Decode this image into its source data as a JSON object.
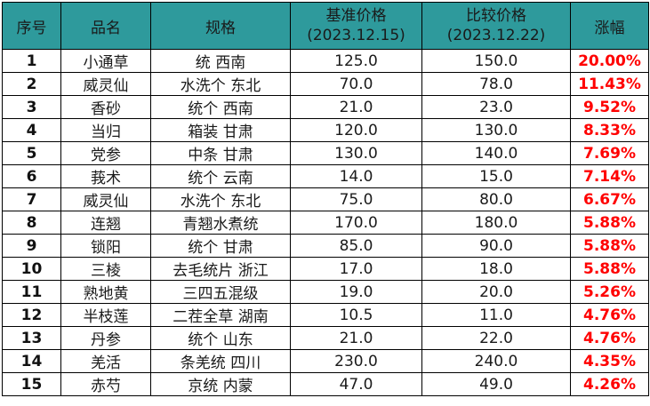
{
  "headers": {
    "index": "序号",
    "name": "品名",
    "spec": "规格",
    "base_line1": "基准价格",
    "base_line2": "(2023.12.15)",
    "comp_line1": "比较价格",
    "comp_line2": "(2023.12.22)",
    "rise": "涨幅"
  },
  "colors": {
    "header_bg": "#2e9a9c",
    "rise_text": "#ff0000"
  },
  "rows": [
    {
      "index": "1",
      "name": "小通草",
      "spec": "统 西南",
      "base": "125.0",
      "comp": "150.0",
      "rise": "20.00%"
    },
    {
      "index": "2",
      "name": "威灵仙",
      "spec": "水洗个 东北",
      "base": "70.0",
      "comp": "78.0",
      "rise": "11.43%"
    },
    {
      "index": "3",
      "name": "香砂",
      "spec": "统个 西南",
      "base": "21.0",
      "comp": "23.0",
      "rise": "9.52%"
    },
    {
      "index": "4",
      "name": "当归",
      "spec": "箱装 甘肃",
      "base": "120.0",
      "comp": "130.0",
      "rise": "8.33%"
    },
    {
      "index": "5",
      "name": "党参",
      "spec": "中条 甘肃",
      "base": "130.0",
      "comp": "140.0",
      "rise": "7.69%"
    },
    {
      "index": "6",
      "name": "莪术",
      "spec": "统个 云南",
      "base": "14.0",
      "comp": "15.0",
      "rise": "7.14%"
    },
    {
      "index": "7",
      "name": "威灵仙",
      "spec": "水洗个 东北",
      "base": "75.0",
      "comp": "80.0",
      "rise": "6.67%"
    },
    {
      "index": "8",
      "name": "连翘",
      "spec": "青翘水煮统",
      "base": "170.0",
      "comp": "180.0",
      "rise": "5.88%"
    },
    {
      "index": "9",
      "name": "锁阳",
      "spec": "统个 甘肃",
      "base": "85.0",
      "comp": "90.0",
      "rise": "5.88%"
    },
    {
      "index": "10",
      "name": "三棱",
      "spec": "去毛统片 浙江",
      "base": "17.0",
      "comp": "18.0",
      "rise": "5.88%"
    },
    {
      "index": "11",
      "name": "熟地黄",
      "spec": "三四五混级",
      "base": "19.0",
      "comp": "20.0",
      "rise": "5.26%"
    },
    {
      "index": "12",
      "name": "半枝莲",
      "spec": "二茬全草 湖南",
      "base": "10.5",
      "comp": "11.0",
      "rise": "4.76%"
    },
    {
      "index": "13",
      "name": "丹参",
      "spec": "统个 山东",
      "base": "21.0",
      "comp": "22.0",
      "rise": "4.76%"
    },
    {
      "index": "14",
      "name": "羌活",
      "spec": "条羌统 四川",
      "base": "230.0",
      "comp": "240.0",
      "rise": "4.35%"
    },
    {
      "index": "15",
      "name": "赤芍",
      "spec": "京统 内蒙",
      "base": "47.0",
      "comp": "49.0",
      "rise": "4.26%"
    }
  ]
}
